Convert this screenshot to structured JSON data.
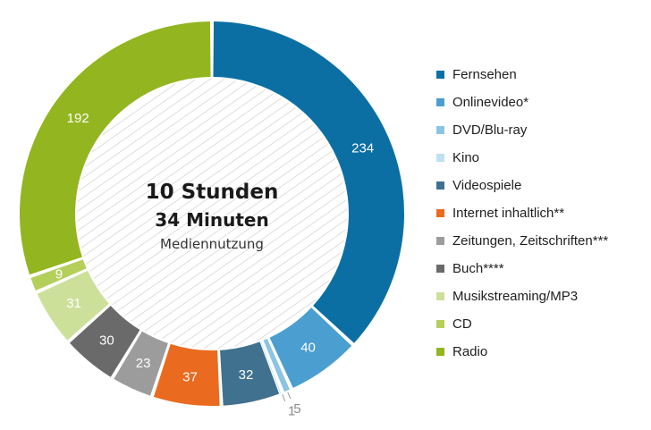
{
  "chart_data": {
    "type": "pie",
    "donut": true,
    "center": {
      "line1": "10 Stunden",
      "line2": "34 Minuten",
      "line3": "Mediennutzung"
    },
    "categories": [
      "Fernsehen",
      "Onlinevideo*",
      "DVD/Blu-ray",
      "Kino",
      "Videospiele",
      "Internet inhaltlich**",
      "Zeitungen, Zeitschriften***",
      "Buch****",
      "Musikstreaming/MP3",
      "CD",
      "Radio"
    ],
    "values": [
      234,
      40,
      5,
      1,
      32,
      37,
      23,
      30,
      31,
      9,
      192
    ],
    "colors": [
      "#0b6fa4",
      "#4a9fd0",
      "#8cc4e3",
      "#bfe0f1",
      "#40718f",
      "#ea6a1f",
      "#9c9c9c",
      "#6a6a6a",
      "#cde09a",
      "#b5cf5b",
      "#93b51f"
    ],
    "legend_position": "right"
  }
}
